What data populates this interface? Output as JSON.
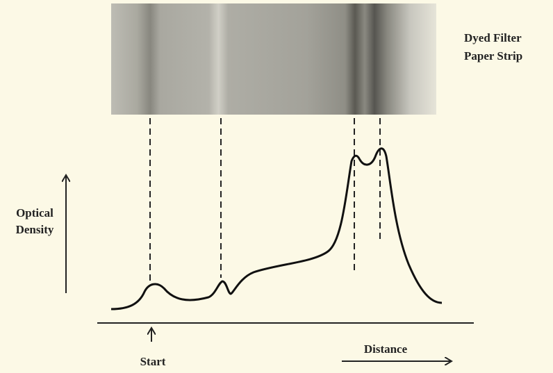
{
  "strip_label": [
    "Dyed Filter",
    "Paper Strip"
  ],
  "y_axis_label": [
    "Optical",
    "Density"
  ],
  "start_label": "Start",
  "x_axis_label": "Distance"
}
